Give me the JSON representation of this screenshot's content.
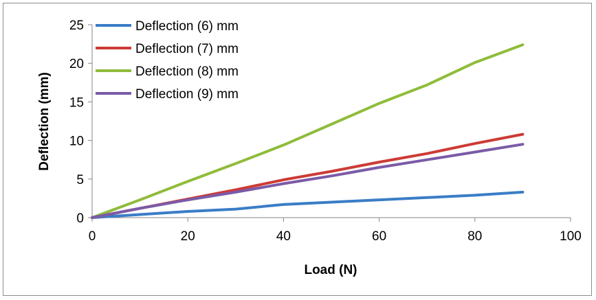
{
  "chart_data": {
    "type": "line",
    "title": "",
    "xlabel": "Load (N)",
    "ylabel": "Deflection (mm)",
    "xlim": [
      0,
      100
    ],
    "ylim": [
      0,
      25
    ],
    "xticks": [
      0,
      20,
      40,
      60,
      80,
      100
    ],
    "yticks": [
      0,
      5,
      10,
      15,
      20,
      25
    ],
    "grid": false,
    "legend_position": "top-left",
    "x": [
      0,
      10,
      20,
      30,
      40,
      50,
      60,
      70,
      80,
      90
    ],
    "series": [
      {
        "name": "Deflection (6) mm",
        "color": "#3a7dc6",
        "values": [
          0,
          0.4,
          0.8,
          1.1,
          1.7,
          2.0,
          2.3,
          2.6,
          2.9,
          3.3
        ]
      },
      {
        "name": "Deflection (7) mm",
        "color": "#cc3b36",
        "values": [
          0,
          1.2,
          2.4,
          3.6,
          4.9,
          6.0,
          7.2,
          8.3,
          9.6,
          10.8
        ]
      },
      {
        "name": "Deflection (8) mm",
        "color": "#8fbc3a",
        "values": [
          0,
          2.3,
          4.7,
          7.0,
          9.4,
          12.1,
          14.8,
          17.2,
          20.1,
          22.4
        ]
      },
      {
        "name": "Deflection (9) mm",
        "color": "#7b5ba8",
        "values": [
          0,
          1.2,
          2.3,
          3.3,
          4.4,
          5.4,
          6.5,
          7.5,
          8.5,
          9.5
        ]
      }
    ]
  }
}
